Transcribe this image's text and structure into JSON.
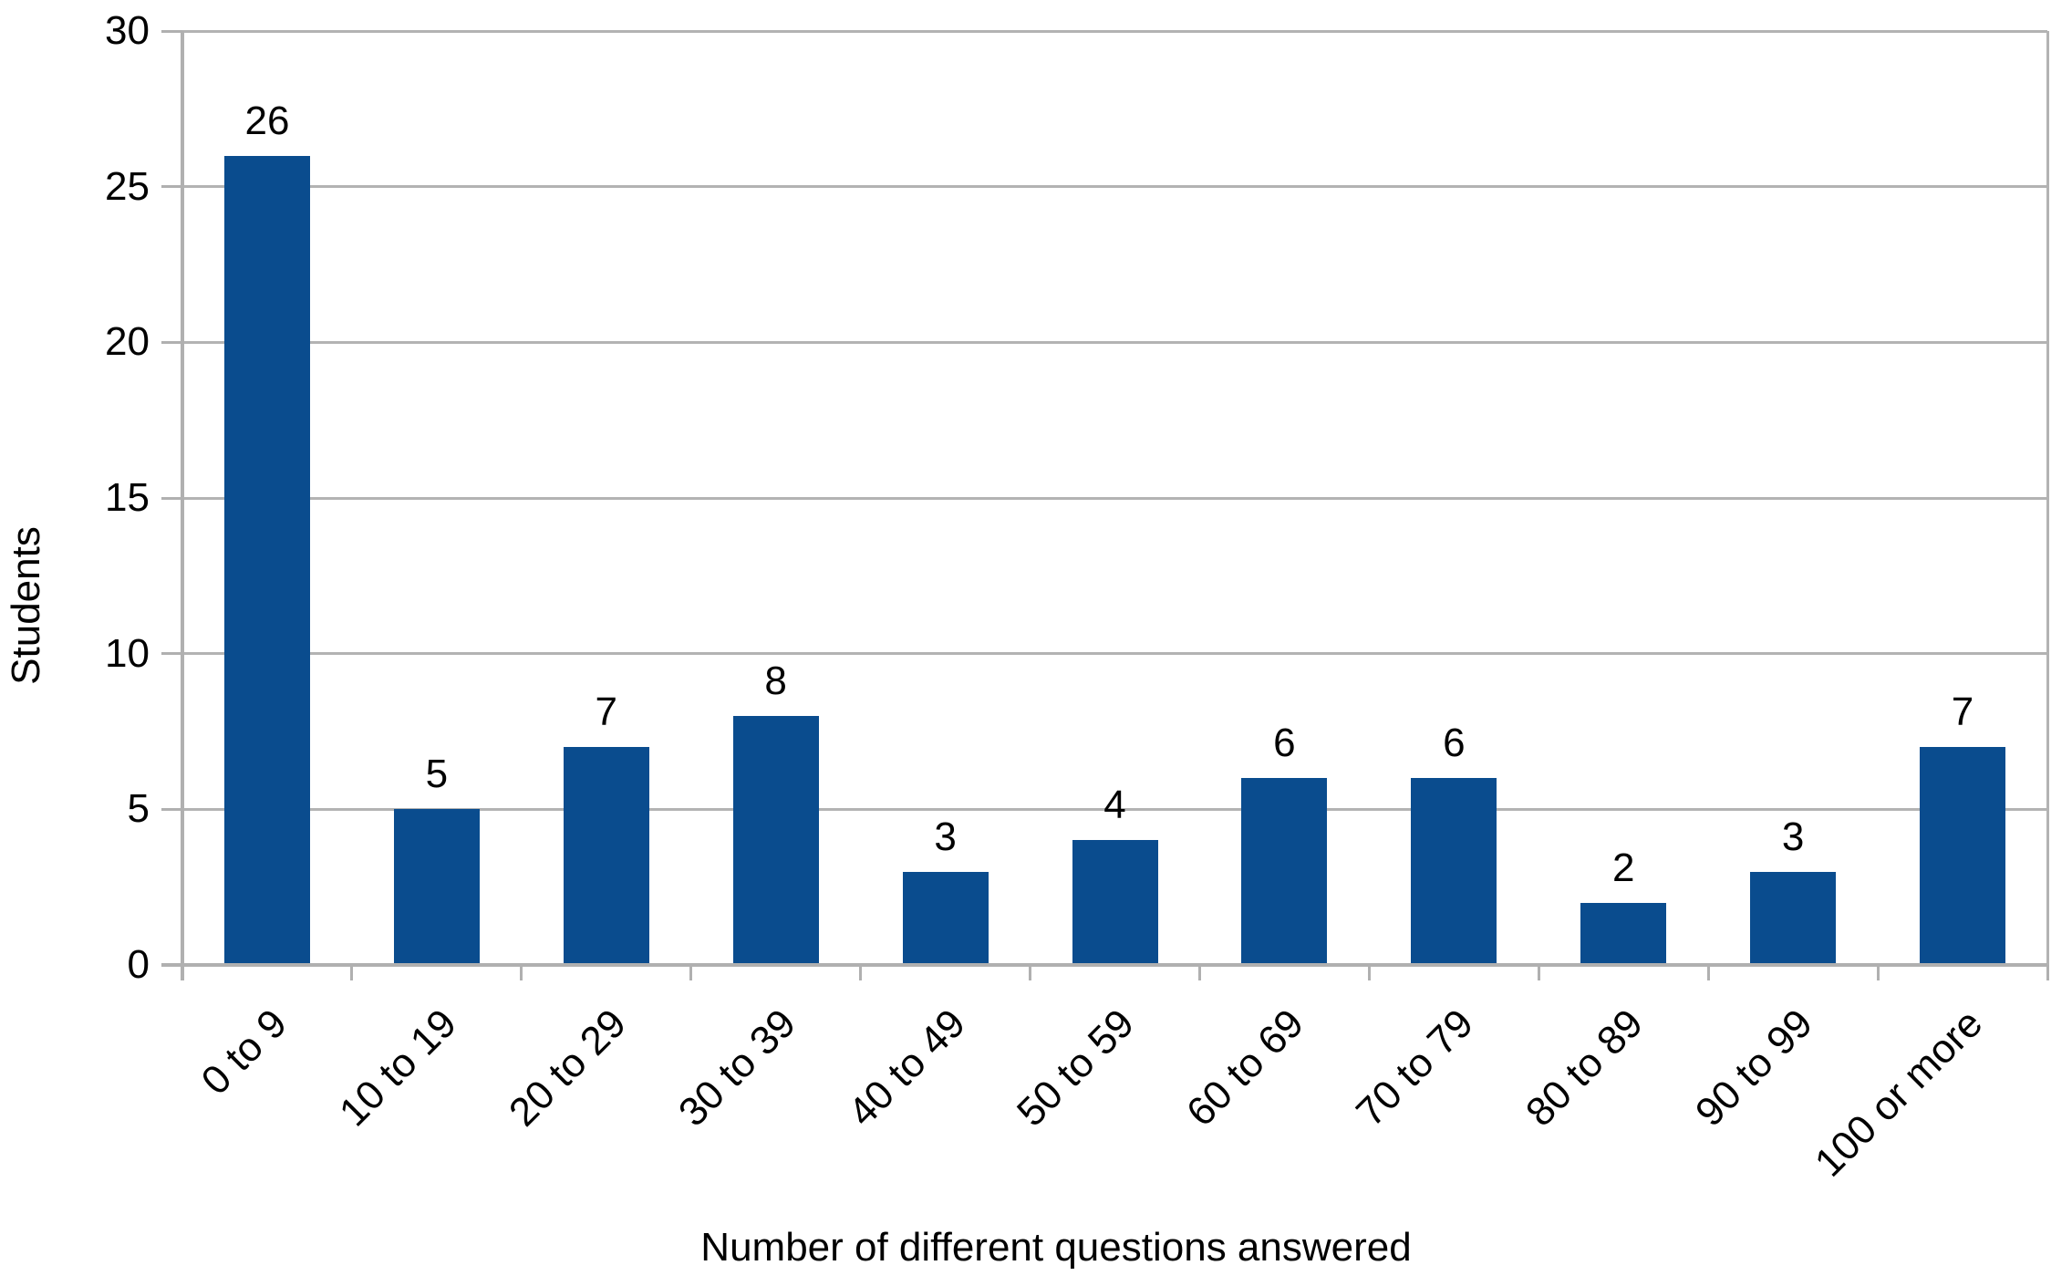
{
  "chart_data": {
    "type": "bar",
    "title": "",
    "categories": [
      "0 to 9",
      "10 to 19",
      "20 to 29",
      "30 to 39",
      "40 to 49",
      "50 to 59",
      "60 to 69",
      "70 to 79",
      "80 to 89",
      "90 to 99",
      "100 or more"
    ],
    "values": [
      26,
      5,
      7,
      8,
      3,
      4,
      6,
      6,
      2,
      3,
      7
    ],
    "data_labels": [
      "26",
      "5",
      "7",
      "8",
      "3",
      "4",
      "6",
      "6",
      "2",
      "3",
      "7"
    ],
    "xlabel": "Number of different questions answered",
    "ylabel": "Students",
    "ylim": [
      0,
      30
    ],
    "ytick_step": 5,
    "ytick_labels": [
      "0",
      "5",
      "10",
      "15",
      "20",
      "25",
      "30"
    ],
    "grid": "horizontal-on",
    "legend": "none",
    "category_label_rotation_deg": -45,
    "colors": {
      "bar": "#0a4c8e",
      "gridline": "#b3b3b3",
      "axis": "#b0b0b0",
      "text": "#000000",
      "background": "#ffffff"
    }
  }
}
